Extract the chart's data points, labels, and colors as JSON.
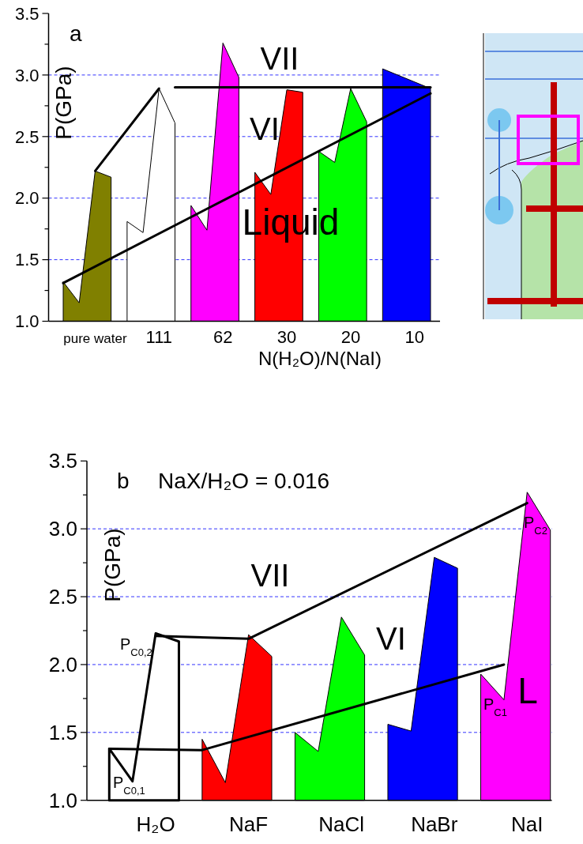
{
  "chart_data": [
    {
      "type": "area",
      "xlabel": "N(H₂O)/N(NaI)",
      "ylabel": "P(GPa)",
      "annotations": [
        "a",
        "VII",
        "VI",
        "Liquid"
      ],
      "categories": [
        null,
        null,
        "pure water",
        null,
        null,
        null,
        "111",
        null,
        null,
        null,
        "62",
        null,
        null,
        null,
        "30",
        null,
        null,
        null,
        "20",
        null,
        null,
        null,
        "10",
        null
      ],
      "ylim": [
        1,
        3.5
      ],
      "yticks": [
        {
          "value": 1,
          "label": "1.0"
        },
        {
          "value": 1.25,
          "label": null
        },
        {
          "value": 1.5,
          "label": "1.5"
        },
        {
          "value": 1.75,
          "label": null
        },
        {
          "value": 2,
          "label": "2.0"
        },
        {
          "value": 2.25,
          "label": null
        },
        {
          "value": 2.5,
          "label": "2.5"
        },
        {
          "value": 2.75,
          "label": null
        },
        {
          "value": 3,
          "label": "3.0"
        },
        {
          "value": 3.25,
          "label": null
        },
        {
          "value": 3.5,
          "label": "3.5"
        }
      ],
      "grid": "y",
      "series": [
        {
          "color": "#808000",
          "values": [
            1.32,
            1.15,
            2.22,
            2.17,
            null,
            null,
            null,
            null,
            null,
            null,
            null,
            null,
            null,
            null,
            null,
            null,
            null,
            null,
            null,
            null,
            null,
            null,
            null,
            null
          ]
        },
        {
          "color": "#ffffff",
          "values": [
            null,
            null,
            null,
            null,
            1.81,
            1.72,
            2.89,
            2.61,
            null,
            null,
            null,
            null,
            null,
            null,
            null,
            null,
            null,
            null,
            null,
            null,
            null,
            null,
            null,
            null
          ]
        },
        {
          "color": "#ff00ff",
          "values": [
            null,
            null,
            null,
            null,
            null,
            null,
            null,
            null,
            1.94,
            1.74,
            3.26,
            2.98,
            null,
            null,
            null,
            null,
            null,
            null,
            null,
            null,
            null,
            null,
            null,
            null
          ]
        },
        {
          "color": "#ff0000",
          "values": [
            null,
            null,
            null,
            null,
            null,
            null,
            null,
            null,
            null,
            null,
            null,
            null,
            2.21,
            2.03,
            2.88,
            2.86,
            null,
            null,
            null,
            null,
            null,
            null,
            null,
            null
          ]
        },
        {
          "color": "#00ff00",
          "values": [
            null,
            null,
            null,
            null,
            null,
            null,
            null,
            null,
            null,
            null,
            null,
            null,
            null,
            null,
            null,
            null,
            2.38,
            2.29,
            2.89,
            2.62,
            null,
            null,
            null,
            null
          ]
        },
        {
          "color": "#0000ff",
          "values": [
            null,
            null,
            null,
            null,
            null,
            null,
            null,
            null,
            null,
            null,
            null,
            null,
            null,
            null,
            null,
            null,
            null,
            null,
            null,
            null,
            3.05,
            null,
            null,
            2.89
          ]
        },
        {
          "type": "line",
          "color": "#000000",
          "values": [
            1.31,
            null,
            null,
            null,
            null,
            null,
            null,
            null,
            null,
            null,
            null,
            null,
            null,
            null,
            null,
            null,
            null,
            null,
            null,
            null,
            null,
            null,
            null,
            2.85
          ]
        },
        {
          "type": "line",
          "color": "#000000",
          "values": [
            null,
            null,
            2.22,
            null,
            null,
            null,
            2.89,
            null,
            null,
            null,
            null,
            null,
            null,
            null,
            null,
            null,
            null,
            null,
            null,
            null,
            null,
            null,
            null,
            null
          ]
        },
        {
          "type": "line",
          "color": "#000000",
          "values": [
            null,
            null,
            null,
            null,
            null,
            null,
            null,
            2.9,
            null,
            null,
            null,
            null,
            null,
            null,
            null,
            null,
            null,
            null,
            null,
            null,
            null,
            null,
            null,
            2.9
          ]
        }
      ]
    },
    {
      "type": "area",
      "title": "NaX/H₂O = 0.016",
      "ylabel": "P(GPa)",
      "annotations": [
        "b",
        "VII",
        "VI",
        "L",
        "P$_{C0,2}$",
        "P$_{C0,1}$",
        "P$_{C1}$",
        "P$_{C2}$"
      ],
      "categories": [
        null,
        null,
        "H₂O",
        null,
        null,
        null,
        "NaF",
        null,
        null,
        null,
        "NaCl",
        null,
        null,
        null,
        "NaBr",
        null,
        null,
        null,
        "NaI",
        null
      ],
      "ylim": [
        1,
        3.5
      ],
      "yticks": [
        {
          "value": 1,
          "label": "1.0"
        },
        {
          "value": 1.25,
          "label": null
        },
        {
          "value": 1.5,
          "label": "1.5"
        },
        {
          "value": 1.75,
          "label": null
        },
        {
          "value": 2,
          "label": "2.0"
        },
        {
          "value": 2.25,
          "label": null
        },
        {
          "value": 2.5,
          "label": "2.5"
        },
        {
          "value": 2.75,
          "label": null
        },
        {
          "value": 3,
          "label": "3.0"
        },
        {
          "value": 3.25,
          "label": null
        },
        {
          "value": 3.5,
          "label": "3.5"
        }
      ],
      "grid": "y",
      "series": [
        {
          "color": "#ffffff",
          "values": [
            1.38,
            1.14,
            2.23,
            2.17,
            null,
            null,
            null,
            null,
            null,
            null,
            null,
            null,
            null,
            null,
            null,
            null,
            null,
            null,
            null,
            null
          ]
        },
        {
          "color": "#ff0000",
          "values": [
            null,
            null,
            null,
            null,
            1.45,
            1.13,
            2.22,
            2.06,
            null,
            null,
            null,
            null,
            null,
            null,
            null,
            null,
            null,
            null,
            null,
            null
          ]
        },
        {
          "color": "#00ff00",
          "values": [
            null,
            null,
            null,
            null,
            null,
            null,
            null,
            null,
            1.5,
            1.36,
            2.35,
            2.07,
            null,
            null,
            null,
            null,
            null,
            null,
            null,
            null
          ]
        },
        {
          "color": "#0000ff",
          "values": [
            null,
            null,
            null,
            null,
            null,
            null,
            null,
            null,
            null,
            null,
            null,
            null,
            1.56,
            1.51,
            2.79,
            2.71,
            null,
            null,
            null,
            null
          ]
        },
        {
          "color": "#ff00ff",
          "values": [
            null,
            null,
            null,
            null,
            null,
            null,
            null,
            null,
            null,
            null,
            null,
            null,
            null,
            null,
            null,
            null,
            1.93,
            1.74,
            3.27,
            2.99
          ]
        },
        {
          "type": "line",
          "color": "#000000",
          "values": [
            1.38,
            null,
            null,
            null,
            1.37,
            null,
            null,
            null,
            null,
            null,
            null,
            null,
            null,
            null,
            null,
            null,
            null,
            2.0,
            null,
            null
          ]
        },
        {
          "type": "line",
          "color": "#000000",
          "values": [
            null,
            null,
            2.21,
            null,
            null,
            null,
            2.19,
            null,
            null,
            null,
            null,
            null,
            null,
            null,
            null,
            null,
            null,
            null,
            3.19,
            null
          ]
        }
      ]
    }
  ]
}
